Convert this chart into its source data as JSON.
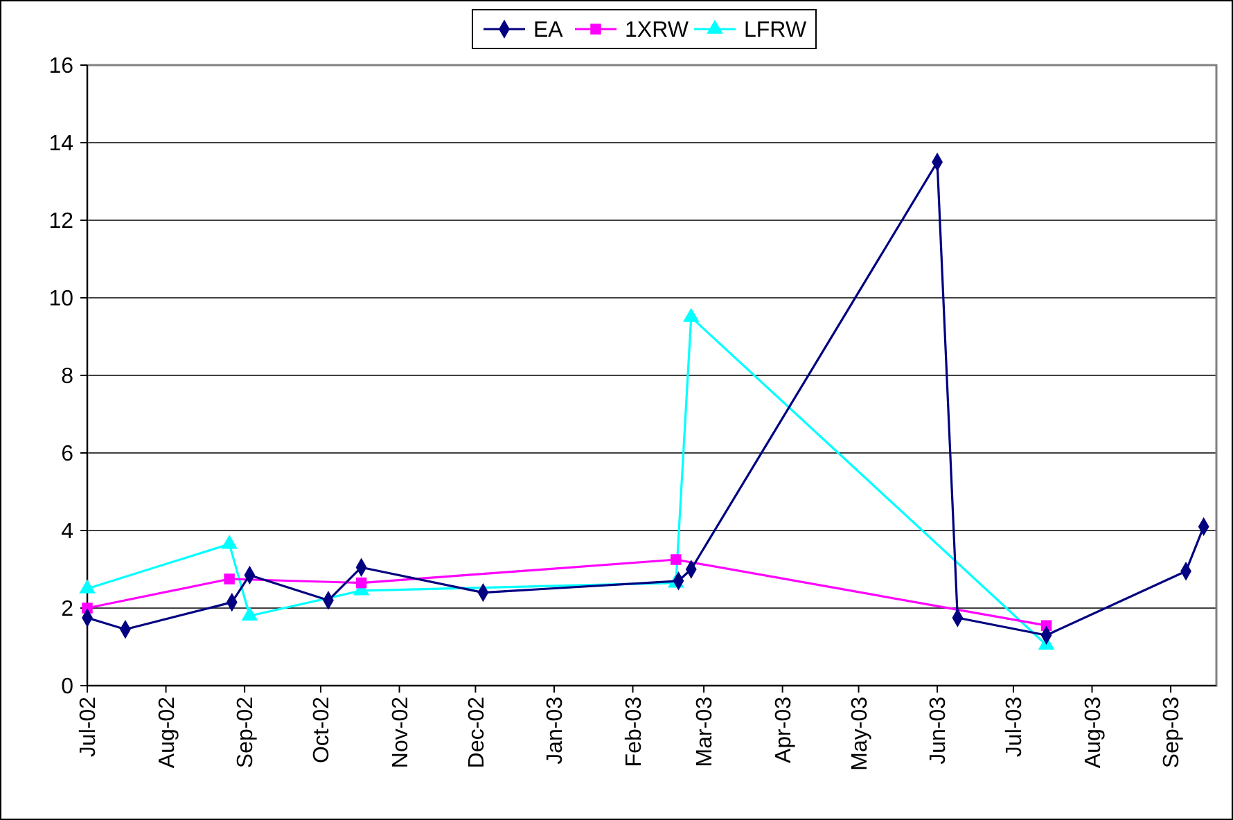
{
  "chart_data": {
    "type": "line",
    "legend": "top",
    "grid": "y",
    "line_style": "solid",
    "xlim": [
      "2002-07-01",
      "2003-09-19"
    ],
    "xticks": [
      {
        "value": "2002-07-01",
        "label": "Jul-02"
      },
      {
        "value": "2002-08-01",
        "label": "Aug-02"
      },
      {
        "value": "2002-09-01",
        "label": "Sep-02"
      },
      {
        "value": "2002-10-01",
        "label": "Oct-02"
      },
      {
        "value": "2002-11-01",
        "label": "Nov-02"
      },
      {
        "value": "2002-12-01",
        "label": "Dec-02"
      },
      {
        "value": "2003-01-01",
        "label": "Jan-03"
      },
      {
        "value": "2003-02-01",
        "label": "Feb-03"
      },
      {
        "value": "2003-03-01",
        "label": "Mar-03"
      },
      {
        "value": "2003-04-01",
        "label": "Apr-03"
      },
      {
        "value": "2003-05-01",
        "label": "May-03"
      },
      {
        "value": "2003-06-01",
        "label": "Jun-03"
      },
      {
        "value": "2003-07-01",
        "label": "Jul-03"
      },
      {
        "value": "2003-08-01",
        "label": "Aug-03"
      },
      {
        "value": "2003-09-01",
        "label": "Sep-03"
      }
    ],
    "ylim": [
      0,
      16
    ],
    "yticks": [
      0,
      2,
      4,
      6,
      8,
      10,
      12,
      14,
      16
    ],
    "series": [
      {
        "name": "EA",
        "color": "#000080",
        "marker": "diamond",
        "x": [
          "2002-07-01",
          "2002-07-16",
          "2002-08-27",
          "2002-09-03",
          "2002-10-04",
          "2002-10-17",
          "2002-12-04",
          "2003-02-19",
          "2003-02-24",
          "2003-06-01",
          "2003-06-09",
          "2003-07-14",
          "2003-09-07",
          "2003-09-14"
        ],
        "values": [
          1.75,
          1.45,
          2.15,
          2.85,
          2.2,
          3.05,
          2.4,
          2.7,
          3.0,
          13.5,
          1.75,
          1.3,
          2.95,
          4.1
        ]
      },
      {
        "name": "1XRW",
        "color": "#ff00ff",
        "marker": "square",
        "x": [
          "2002-07-01",
          "2002-08-26",
          "2002-10-17",
          "2003-02-18",
          "2003-07-14"
        ],
        "values": [
          2.0,
          2.75,
          2.65,
          3.25,
          1.55
        ]
      },
      {
        "name": "LFRW",
        "color": "#00ffff",
        "marker": "triangle",
        "x": [
          "2002-07-01",
          "2002-08-26",
          "2002-09-03",
          "2002-10-17",
          "2003-02-18",
          "2003-02-24",
          "2003-07-14"
        ],
        "values": [
          2.5,
          3.65,
          1.8,
          2.45,
          2.65,
          9.5,
          1.05
        ]
      }
    ]
  }
}
